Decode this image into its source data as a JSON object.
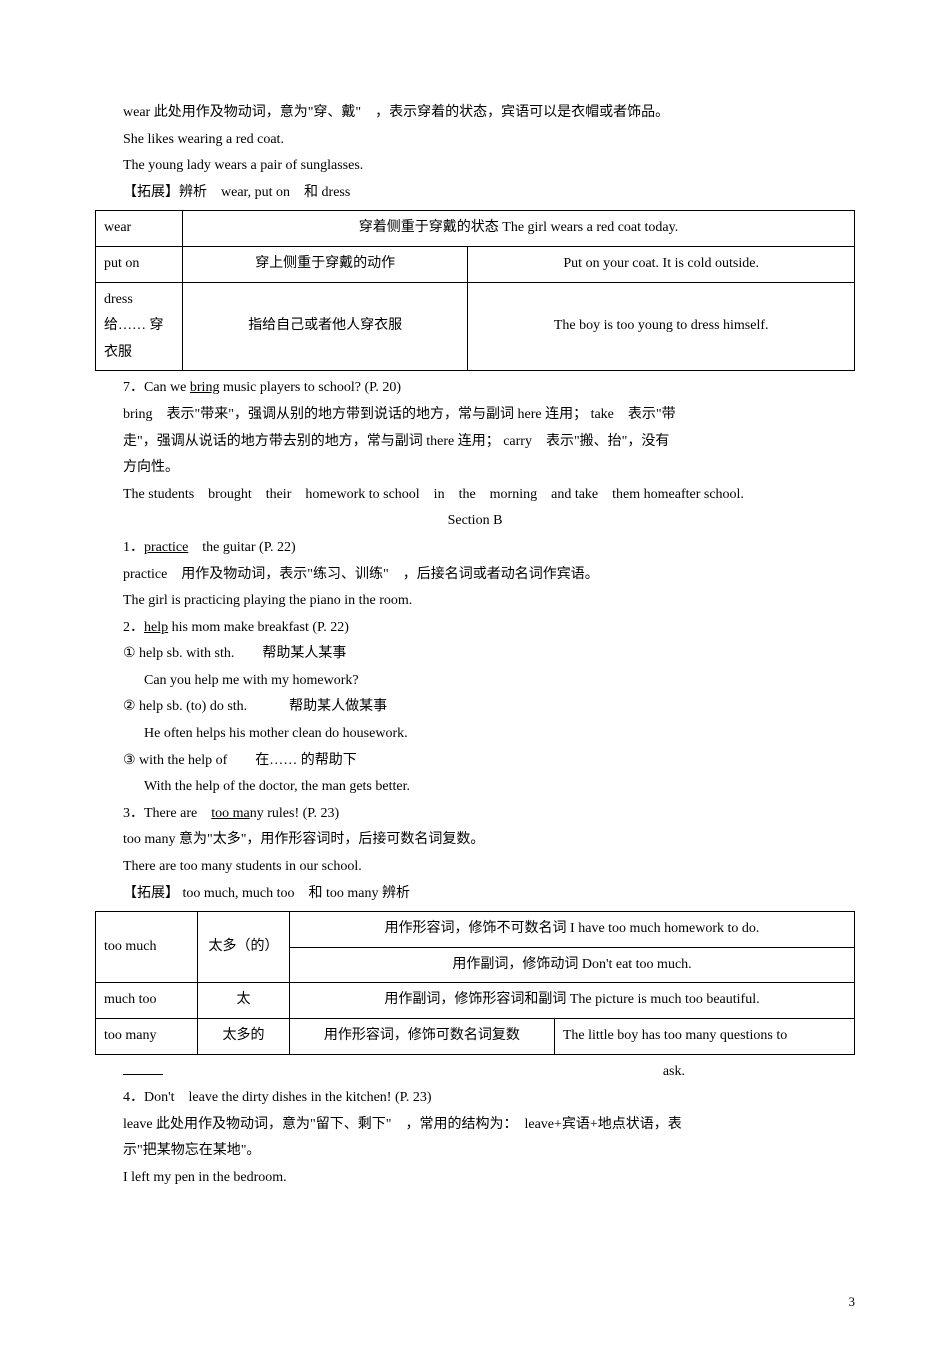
{
  "p1": "wear 此处用作及物动词，意为\"穿、戴\"　，表示穿着的状态，宾语可以是衣帽或者饰品。",
  "p2": "She likes wearing a red coat.",
  "p3": "The young lady wears a pair of sunglasses.",
  "p4": "【拓展】辨析　wear, put on　和 dress",
  "t1": {
    "r1c1": "wear",
    "r1c2": "穿着侧重于穿戴的状态 The girl wears a red coat today.",
    "r2c1": "put on",
    "r2c2": "穿上侧重于穿戴的动作",
    "r2c3": "Put on your coat. It is cold outside.",
    "r3c1": "dress 给…… 穿衣服",
    "r3c2": "指给自己或者他人穿衣服",
    "r3c3": "The boy is too young to dress himself."
  },
  "p5a": "7．Can we ",
  "p5u": "bring",
  "p5b": " music players to school? (P. 20)",
  "p6": "bring　表示\"带来\"，强调从别的地方带到说话的地方，常与副词 here 连用； take　表示\"带",
  "p7": "走\"，强调从说话的地方带去别的地方，常与副词 there 连用； carry　表示\"搬、抬\"，没有",
  "p8": "方向性。",
  "p9": "The students　brought　their　homework to school　in　the　morning　and take　them homeafter school.",
  "secB": "Section B",
  "p10a": "1．",
  "p10u": "practice",
  "p10b": "　the guitar (P. 22)",
  "p11": "practice　用作及物动词，表示\"练习、训练\"　，后接名词或者动名词作宾语。",
  "p12": "The girl is practicing playing the piano in the room.",
  "p13a": "2．",
  "p13u": "help",
  "p13b": " his mom make breakfast (P. 22)",
  "p14": "① help sb. with sth.　　帮助某人某事",
  "p15": "Can you help me with my homework?",
  "p16": "② help sb. (to) do sth.　　　帮助某人做某事",
  "p17": "He often helps his mother clean do housework.",
  "p18": "③ with the help of　　在…… 的帮助下",
  "p19": "With the help of the doctor, the man gets better.",
  "p20a": "3．There are　",
  "p20u": "too ma",
  "p20b": "ny rules! (P. 23)",
  "p21": "too many 意为\"太多\"，用作形容词时，后接可数名词复数。",
  "p22": "There are too many students in our school.",
  "p23": "【拓展】 too much, much too　和 too many 辨析",
  "t2": {
    "r1c1": "too much",
    "r1c2": "太多（的）",
    "r1c3a": "用作形容词，修饰不可数名词 I have too much homework to do.",
    "r1c3b": "用作副词，修饰动词 Don't eat too much.",
    "r2c1": "much too",
    "r2c2": "太",
    "r2c3": "用作副词，修饰形容词和副词 The picture is much too beautiful.",
    "r3c1": "too many",
    "r3c2": "太多的",
    "r3c3": "用作形容词，修饰可数名词复数",
    "r3c4": "The little boy has too many questions to"
  },
  "ask": "ask.",
  "p24": "4．Don't　leave the dirty dishes in the kitchen! (P. 23)",
  "p25": "leave 此处用作及物动词，意为\"留下、剩下\"　，常用的结构为：　leave+宾语+地点状语，表",
  "p26": "示\"把某物忘在某地\"。",
  "p27": "I left my pen in the bedroom.",
  "pagenum": "3"
}
